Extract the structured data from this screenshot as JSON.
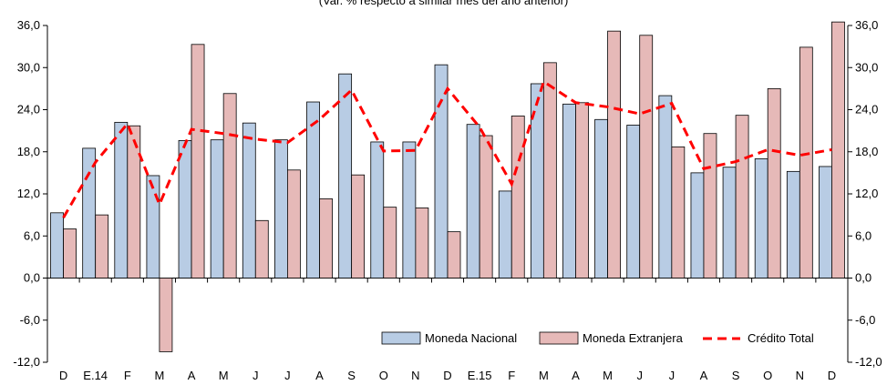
{
  "chart_data": {
    "type": "bar",
    "subtitle": "(Var. % respecto a similar mes del año anterior)",
    "categories": [
      "D",
      "E.14",
      "F",
      "M",
      "A",
      "M",
      "J",
      "J",
      "A",
      "S",
      "O",
      "N",
      "D",
      "E.15",
      "F",
      "M",
      "A",
      "M",
      "J",
      "J",
      "A",
      "S",
      "O",
      "N",
      "D"
    ],
    "ylim": [
      -12,
      36
    ],
    "yticks": [
      "-12,0",
      "-6,0",
      "0,0",
      "6,0",
      "12,0",
      "18,0",
      "24,0",
      "30,0",
      "36,0"
    ],
    "grid": false,
    "legend_position": "bottom-right",
    "series": [
      {
        "name": "Moneda Nacional",
        "type": "bar",
        "color": "#b8cce4",
        "values": [
          9.3,
          18.5,
          22.2,
          14.6,
          19.6,
          19.7,
          22.1,
          19.7,
          25.1,
          29.1,
          19.4,
          19.4,
          30.4,
          21.9,
          12.4,
          27.7,
          24.8,
          22.6,
          21.8,
          26.0,
          15.0,
          15.8,
          17.0,
          15.2,
          15.9
        ]
      },
      {
        "name": "Moneda Extranjera",
        "type": "bar",
        "color": "#e6b9b8",
        "values": [
          7.0,
          9.0,
          21.7,
          -10.5,
          33.3,
          26.3,
          8.2,
          15.4,
          11.3,
          14.7,
          10.1,
          10.0,
          6.6,
          20.3,
          23.1,
          30.7,
          25.0,
          35.2,
          34.6,
          18.7,
          20.6,
          23.2,
          27.0,
          32.9,
          36.5
        ]
      },
      {
        "name": "Crédito Total",
        "type": "line",
        "color": "#ff0000",
        "values": [
          8.6,
          16.5,
          22.0,
          10.5,
          21.2,
          20.6,
          19.8,
          19.3,
          22.6,
          26.8,
          18.1,
          18.2,
          27.0,
          21.5,
          13.4,
          28.0,
          25.0,
          24.4,
          23.4,
          24.9,
          15.6,
          16.6,
          18.3,
          17.5,
          18.3
        ]
      }
    ]
  }
}
